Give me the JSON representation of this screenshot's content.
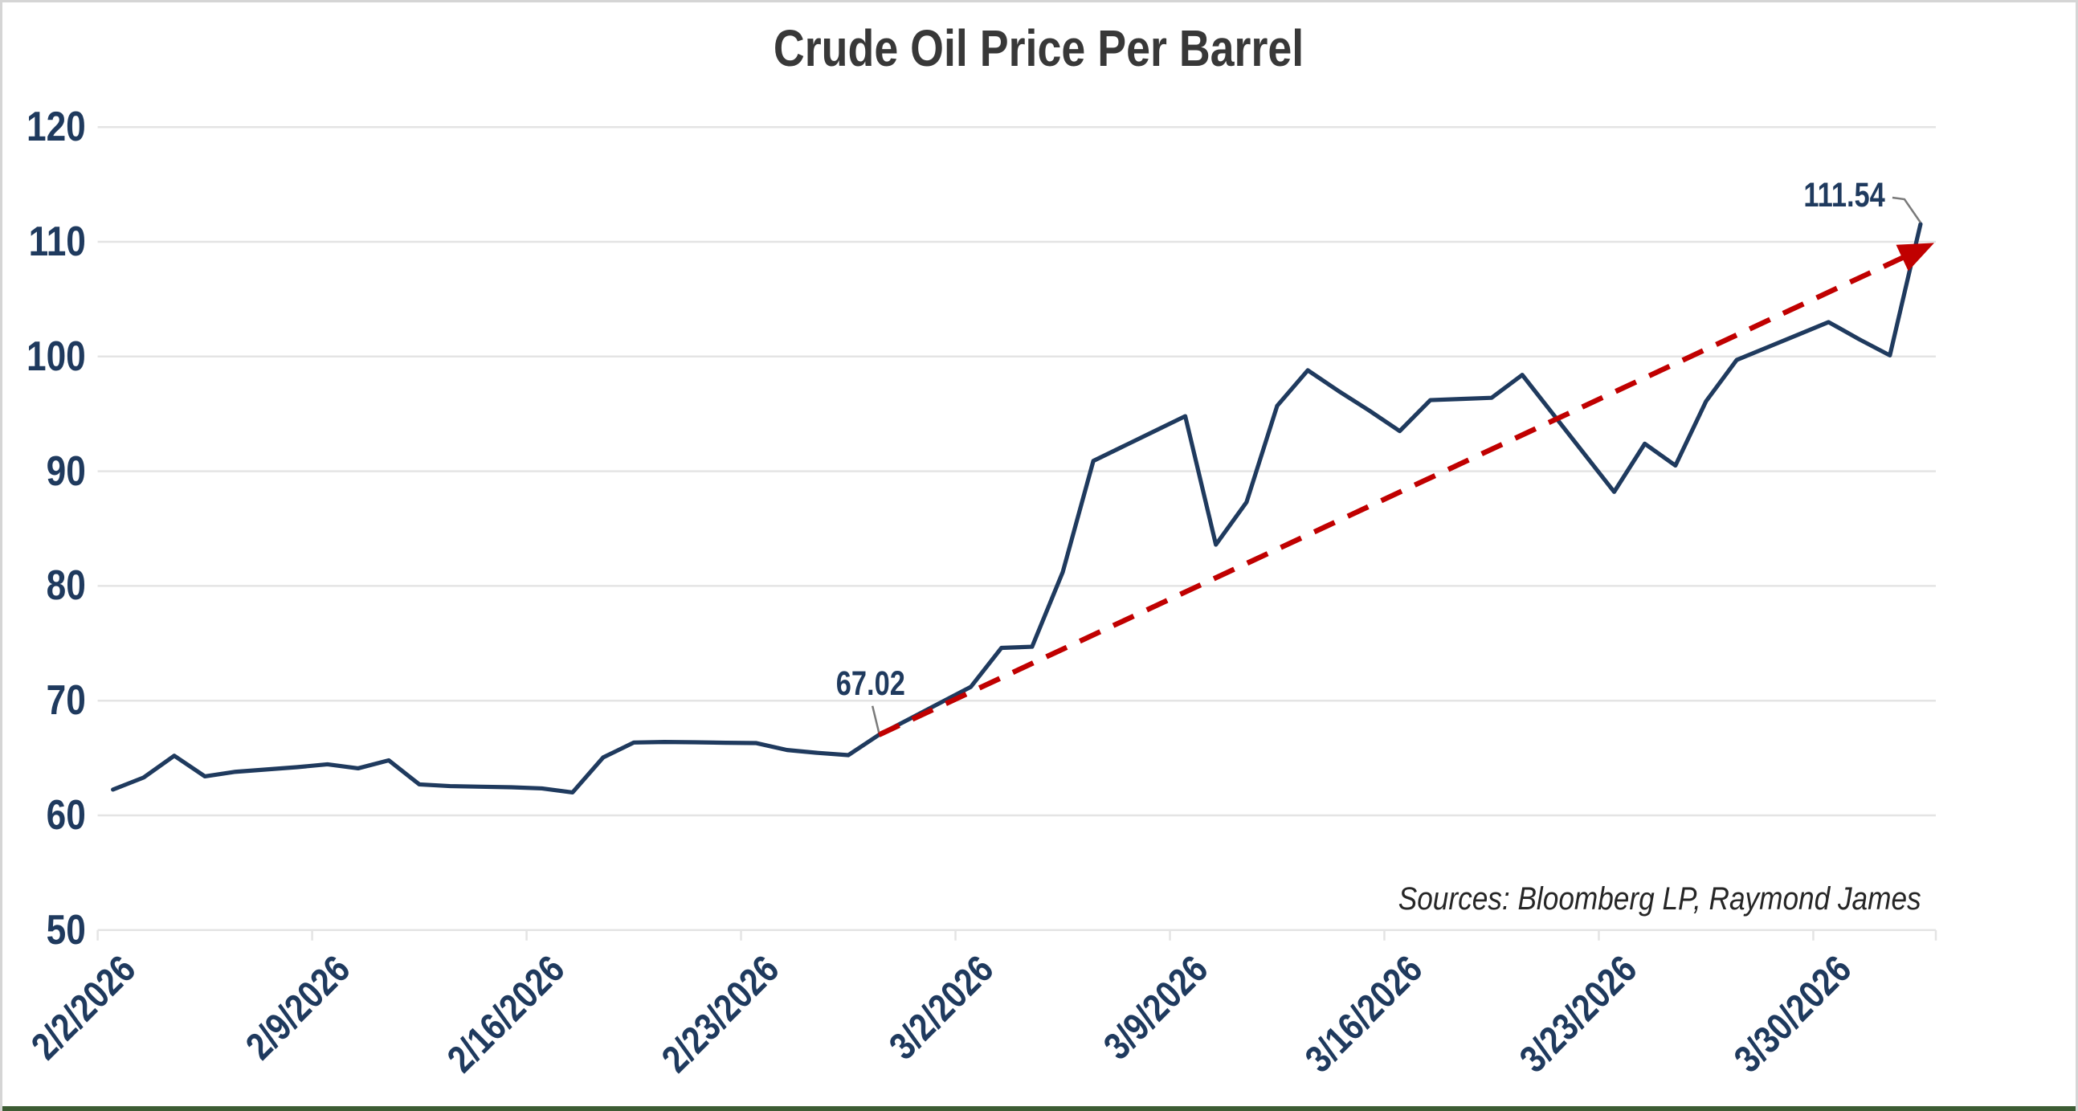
{
  "chart_data": {
    "type": "line",
    "title": "Crude Oil Price Per Barrel",
    "sources_note": "Sources: Bloomberg LP, Raymond James",
    "y_axis": {
      "min": 50,
      "max": 120,
      "tick_interval": 10
    },
    "y_ticks": [
      120,
      110,
      100,
      90,
      80,
      70,
      60,
      50
    ],
    "x_tick_labels": [
      "2/2/2026",
      "2/9/2026",
      "2/16/2026",
      "2/23/2026",
      "3/2/2026",
      "3/9/2026",
      "3/16/2026",
      "3/23/2026",
      "3/30/2026"
    ],
    "x_tick_label_indices": [
      0,
      7,
      14,
      21,
      28,
      35,
      42,
      49,
      56
    ],
    "grid": "horizontal-only",
    "legend": "none",
    "series": [
      {
        "name": "Crude Oil Price Per Barrel",
        "color": "#1F3A5E",
        "dates": [
          "2/2/2026",
          "2/3/2026",
          "2/4/2026",
          "2/5/2026",
          "2/6/2026",
          "2/7/2026",
          "2/8/2026",
          "2/9/2026",
          "2/10/2026",
          "2/11/2026",
          "2/12/2026",
          "2/13/2026",
          "2/14/2026",
          "2/15/2026",
          "2/16/2026",
          "2/17/2026",
          "2/18/2026",
          "2/19/2026",
          "2/20/2026",
          "2/21/2026",
          "2/22/2026",
          "2/23/2026",
          "2/24/2026",
          "2/25/2026",
          "2/26/2026",
          "2/27/2026",
          "2/28/2026",
          "3/1/2026",
          "3/2/2026",
          "3/3/2026",
          "3/4/2026",
          "3/5/2026",
          "3/6/2026",
          "3/7/2026",
          "3/8/2026",
          "3/9/2026",
          "3/10/2026",
          "3/11/2026",
          "3/12/2026",
          "3/13/2026",
          "3/14/2026",
          "3/15/2026",
          "3/16/2026",
          "3/17/2026",
          "3/18/2026",
          "3/19/2026",
          "3/20/2026",
          "3/21/2026",
          "3/22/2026",
          "3/23/2026",
          "3/24/2026",
          "3/25/2026",
          "3/26/2026",
          "3/27/2026",
          "3/28/2026",
          "3/29/2026",
          "3/30/2026",
          "3/31/2026",
          "4/1/2026",
          "4/2/2026"
        ],
        "values": [
          62.25,
          63.3,
          65.2,
          63.4,
          63.8,
          64.0,
          64.2,
          64.45,
          64.1,
          64.8,
          62.7,
          62.55,
          62.5,
          62.45,
          62.35,
          62.0,
          65.05,
          66.35,
          66.4,
          66.37,
          66.33,
          66.3,
          65.7,
          65.45,
          65.25,
          67.02,
          68.41,
          69.81,
          71.2,
          74.6,
          74.7,
          81.2,
          90.9,
          92.2,
          93.5,
          94.8,
          83.6,
          87.3,
          95.7,
          98.8,
          97.0,
          95.3,
          93.5,
          96.2,
          96.3,
          96.4,
          98.4,
          95.0,
          91.6,
          88.2,
          92.4,
          90.5,
          96.1,
          99.7,
          100.8,
          101.9,
          103.0,
          101.5,
          100.1,
          111.54
        ]
      }
    ],
    "trendline": {
      "style": "dashed",
      "color": "#C00000",
      "arrow": true,
      "start_date": "2/27/2026",
      "start_value": 67.02,
      "end_value": 109.9,
      "start_point_index": 25
    },
    "annotations": [
      {
        "label": "67.02",
        "date": "2/27/2026",
        "value": 67.02,
        "point_index": 25
      },
      {
        "label": "111.54",
        "date": "4/2/2026",
        "value": 111.54,
        "point_index": 59
      }
    ],
    "colors": {
      "line": "#1F3A5E",
      "trend": "#C00000",
      "axis_text": "#1F3A5E",
      "title_text": "#383838",
      "sources_text": "#262626",
      "gridline": "#E4E4E4",
      "leader": "#7A7A7A",
      "bottom_bar": "#3C5C33",
      "frame": "#D5D5D5"
    }
  }
}
